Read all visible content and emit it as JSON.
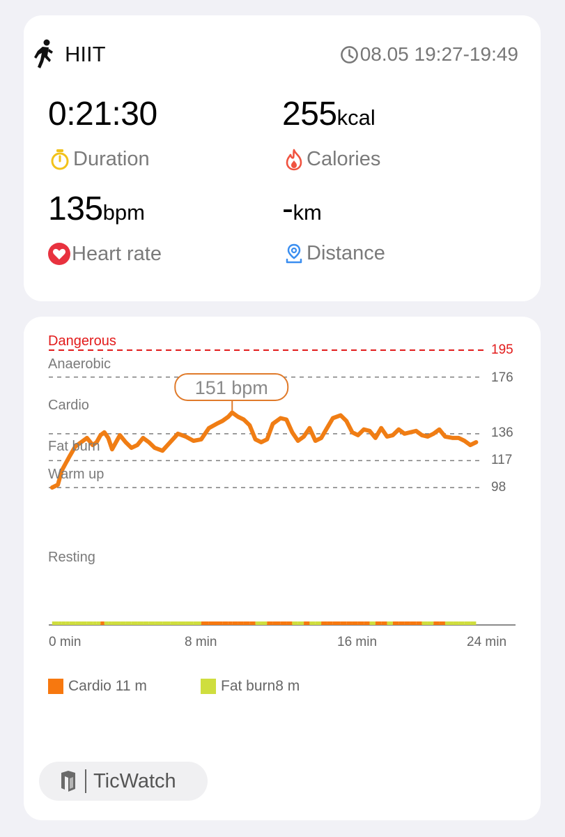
{
  "workout": {
    "type": "HIIT",
    "time_range": "08.05 19:27-19:49"
  },
  "metrics": {
    "duration": {
      "value": "0:21:30",
      "label": "Duration"
    },
    "calories": {
      "value": "255",
      "unit": "kcal",
      "label": "Calories"
    },
    "heart_rate": {
      "value": "135",
      "unit": "bpm",
      "label": "Heart rate"
    },
    "distance": {
      "value": "-",
      "unit": "km",
      "label": "Distance"
    }
  },
  "colors": {
    "danger": "#e21b1b",
    "line": "#f07d14",
    "cardio": "#f7780f",
    "fatburn": "#cfde3e",
    "icon_yellow": "#f2c21a",
    "icon_red": "#f05340",
    "icon_blue": "#3a8ef0"
  },
  "chart_data": {
    "type": "line",
    "xlabel": "",
    "ylabel": "",
    "x_ticks": [
      "0 min",
      "8 min",
      "16 min",
      "24 min"
    ],
    "xlim": [
      0,
      24
    ],
    "zones": [
      {
        "name": "Dangerous",
        "threshold": 195
      },
      {
        "name": "Anaerobic",
        "threshold": 176
      },
      {
        "name": "Cardio",
        "threshold": 136
      },
      {
        "name": "Fat burn",
        "threshold": 117
      },
      {
        "name": "Warm up",
        "threshold": 98
      },
      {
        "name": "Resting",
        "threshold": null
      }
    ],
    "peak_label": "151 bpm",
    "peak": {
      "x": 9.4,
      "y": 151
    },
    "series": [
      {
        "values": [
          [
            0.1,
            98
          ],
          [
            0.4,
            100
          ],
          [
            0.6,
            110
          ],
          [
            0.8,
            115
          ],
          [
            1.0,
            120
          ],
          [
            1.3,
            127
          ],
          [
            1.6,
            130
          ],
          [
            1.9,
            133
          ],
          [
            2.2,
            128
          ],
          [
            2.4,
            130
          ],
          [
            2.6,
            135
          ],
          [
            2.8,
            137
          ],
          [
            3.0,
            133
          ],
          [
            3.2,
            125
          ],
          [
            3.4,
            130
          ],
          [
            3.6,
            135
          ],
          [
            3.9,
            130
          ],
          [
            4.2,
            126
          ],
          [
            4.5,
            128
          ],
          [
            4.8,
            133
          ],
          [
            5.1,
            130
          ],
          [
            5.4,
            126
          ],
          [
            5.8,
            124
          ],
          [
            6.2,
            130
          ],
          [
            6.6,
            136
          ],
          [
            7.0,
            134
          ],
          [
            7.4,
            131
          ],
          [
            7.8,
            132
          ],
          [
            8.2,
            140
          ],
          [
            8.6,
            143
          ],
          [
            8.9,
            145
          ],
          [
            9.2,
            148
          ],
          [
            9.4,
            151
          ],
          [
            9.7,
            148
          ],
          [
            10.0,
            146
          ],
          [
            10.3,
            142
          ],
          [
            10.6,
            132
          ],
          [
            10.9,
            130
          ],
          [
            11.2,
            132
          ],
          [
            11.5,
            143
          ],
          [
            11.9,
            147
          ],
          [
            12.2,
            146
          ],
          [
            12.5,
            137
          ],
          [
            12.8,
            131
          ],
          [
            13.1,
            134
          ],
          [
            13.4,
            140
          ],
          [
            13.7,
            131
          ],
          [
            14.0,
            133
          ],
          [
            14.3,
            140
          ],
          [
            14.6,
            147
          ],
          [
            15.0,
            149
          ],
          [
            15.3,
            145
          ],
          [
            15.6,
            137
          ],
          [
            15.9,
            135
          ],
          [
            16.2,
            139
          ],
          [
            16.5,
            138
          ],
          [
            16.8,
            133
          ],
          [
            17.1,
            140
          ],
          [
            17.4,
            134
          ],
          [
            17.7,
            135
          ],
          [
            18.0,
            139
          ],
          [
            18.3,
            136
          ],
          [
            18.6,
            137
          ],
          [
            18.9,
            138
          ],
          [
            19.2,
            135
          ],
          [
            19.5,
            134
          ],
          [
            19.8,
            136
          ],
          [
            20.1,
            139
          ],
          [
            20.4,
            134
          ],
          [
            20.8,
            133
          ],
          [
            21.1,
            133
          ],
          [
            21.4,
            131
          ],
          [
            21.7,
            128
          ],
          [
            22.0,
            130
          ]
        ]
      }
    ],
    "legend": [
      {
        "name": "Cardio",
        "value": "11 m",
        "color": "#f7780f"
      },
      {
        "name": "Fat burn",
        "value": "8 m",
        "color": "#cfde3e"
      }
    ]
  },
  "chart_labels": {
    "zones": [
      "Dangerous",
      "Anaerobic",
      "Cardio",
      "Fat burn",
      "Warm up",
      "Resting"
    ],
    "thresholds": [
      "195",
      "176",
      "136",
      "117",
      "98"
    ],
    "legend_cardio": "Cardio 11 m",
    "legend_fatburn": "Fat burn8 m"
  },
  "brand": {
    "name": "TicWatch"
  }
}
